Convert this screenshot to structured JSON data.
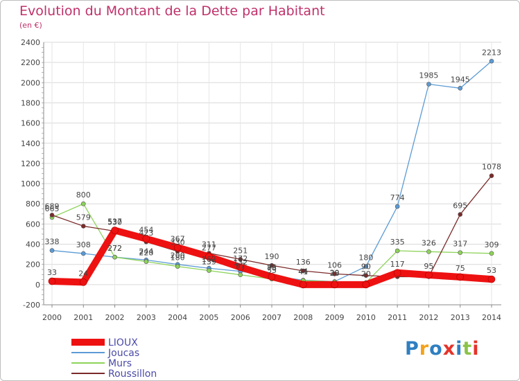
{
  "title": "Evolution du Montant de la Dette par Habitant",
  "subtitle": "(en €)",
  "logo": {
    "text": "Proxiti",
    "colors": [
      "#2f7fc1",
      "#f3a21a",
      "#2f7fc1",
      "#e5332a",
      "#2f7fc1",
      "#8bc34a",
      "#e5332a"
    ]
  },
  "chart_data": {
    "type": "line",
    "title": "Evolution du Montant de la Dette par Habitant",
    "ylabel": "(en €)",
    "xlabel": "",
    "x": [
      "2000",
      "2001",
      "2002",
      "2003",
      "2004",
      "2005",
      "2006",
      "2007",
      "2008",
      "2009",
      "2010",
      "2011",
      "2012",
      "2013",
      "2014"
    ],
    "ylim": [
      -200,
      2400
    ],
    "yticks": [
      -200,
      0,
      200,
      400,
      600,
      800,
      1000,
      1200,
      1400,
      1600,
      1800,
      2000,
      2200,
      2400
    ],
    "grid": true,
    "legend": "bottom-left",
    "series": [
      {
        "name": "Joucas",
        "color": "#5b9bd5",
        "values": [
          338,
          308,
          272,
          244,
          200,
          162,
          132,
          85,
          44,
          30,
          180,
          774,
          1985,
          1945,
          2213
        ],
        "labels": [
          "338",
          "308",
          "272",
          "244",
          "200",
          "162",
          "132",
          "85",
          "44",
          "30",
          "180",
          "774",
          "1985",
          "1945",
          "2213"
        ]
      },
      {
        "name": "Murs",
        "color": "#8ed35a",
        "values": [
          665,
          800,
          272,
          228,
          180,
          139,
          97,
          55,
          41,
          28,
          20,
          335,
          326,
          317,
          309
        ],
        "labels": [
          "665",
          "800",
          "272",
          "228",
          "180",
          "139",
          "97",
          "55",
          "41",
          "28",
          "20",
          "335",
          "326",
          "317",
          "309"
        ]
      },
      {
        "name": "Roussillon",
        "color": "#7b2a2a",
        "values": [
          689,
          579,
          530,
          423,
          330,
          311,
          251,
          190,
          136,
          106,
          90,
          78,
          78,
          695,
          1078
        ],
        "labels": [
          "689",
          "579",
          "530",
          "423",
          "330",
          "311",
          "251",
          "190",
          "136",
          "106",
          "90",
          "",
          "",
          "695",
          "1078"
        ]
      },
      {
        "name": "LIOUX",
        "color": "#ee1111",
        "values": [
          33,
          24,
          537,
          454,
          367,
          277,
          172,
          78,
          0,
          0,
          0,
          117,
          95,
          75,
          53
        ],
        "labels": [
          "33",
          "24",
          "537",
          "454",
          "367",
          "277",
          "172",
          "78",
          "",
          "",
          "",
          "117",
          "95",
          "75",
          "53"
        ]
      }
    ],
    "legend_entries": [
      "LIOUX",
      "Joucas",
      "Murs",
      "Roussillon"
    ]
  }
}
